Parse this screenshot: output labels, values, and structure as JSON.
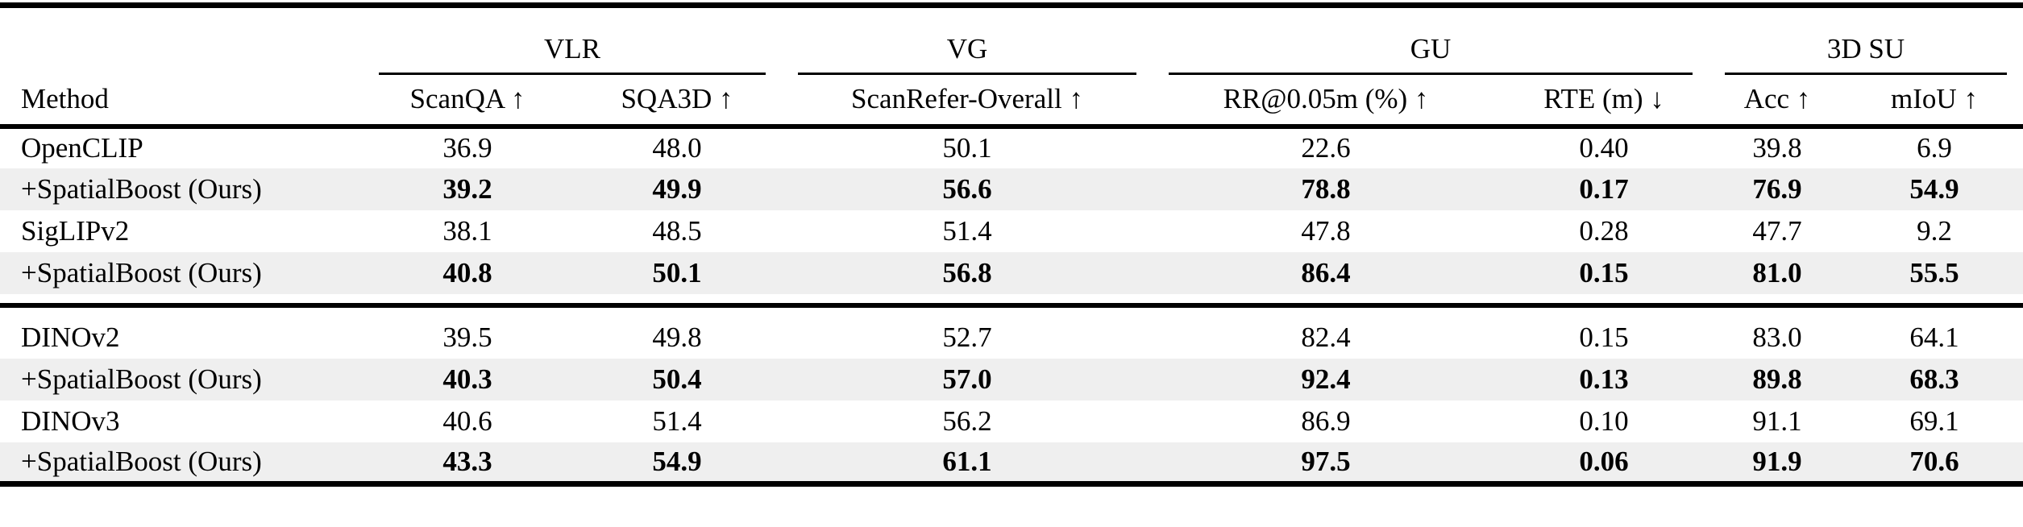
{
  "table": {
    "groups": [
      {
        "label": "VLR"
      },
      {
        "label": "VG"
      },
      {
        "label": "GU"
      },
      {
        "label": "3D SU"
      }
    ],
    "columns": {
      "method": "Method",
      "scanqa": "ScanQA ↑",
      "sqa3d": "SQA3D ↑",
      "scanrefer": "ScanRefer-Overall ↑",
      "rr": "RR@0.05m (%) ↑",
      "rte": "RTE (m) ↓",
      "acc": "Acc ↑",
      "miou": "mIoU ↑"
    },
    "rows": [
      {
        "method": "OpenCLIP",
        "bold": false,
        "values": [
          "36.9",
          "48.0",
          "50.1",
          "22.6",
          "0.40",
          "39.8",
          "6.9"
        ]
      },
      {
        "method": "+SpatialBoost (Ours)",
        "bold": true,
        "values": [
          "39.2",
          "49.9",
          "56.6",
          "78.8",
          "0.17",
          "76.9",
          "54.9"
        ]
      },
      {
        "method": "SigLIPv2",
        "bold": false,
        "values": [
          "38.1",
          "48.5",
          "51.4",
          "47.8",
          "0.28",
          "47.7",
          "9.2"
        ]
      },
      {
        "method": "+SpatialBoost (Ours)",
        "bold": true,
        "values": [
          "40.8",
          "50.1",
          "56.8",
          "86.4",
          "0.15",
          "81.0",
          "55.5"
        ]
      },
      {
        "method": "DINOv2",
        "bold": false,
        "values": [
          "39.5",
          "49.8",
          "52.7",
          "82.4",
          "0.15",
          "83.0",
          "64.1"
        ]
      },
      {
        "method": "+SpatialBoost (Ours)",
        "bold": true,
        "values": [
          "40.3",
          "50.4",
          "57.0",
          "92.4",
          "0.13",
          "89.8",
          "68.3"
        ]
      },
      {
        "method": "DINOv3",
        "bold": false,
        "values": [
          "40.6",
          "51.4",
          "56.2",
          "86.9",
          "0.10",
          "91.1",
          "69.1"
        ]
      },
      {
        "method": "+SpatialBoost (Ours)",
        "bold": true,
        "values": [
          "43.3",
          "54.9",
          "61.1",
          "97.5",
          "0.06",
          "91.9",
          "70.6"
        ]
      }
    ],
    "colors": {
      "stripe": "#efefef",
      "rule": "#000000",
      "text": "#000000",
      "background": "#ffffff"
    }
  }
}
